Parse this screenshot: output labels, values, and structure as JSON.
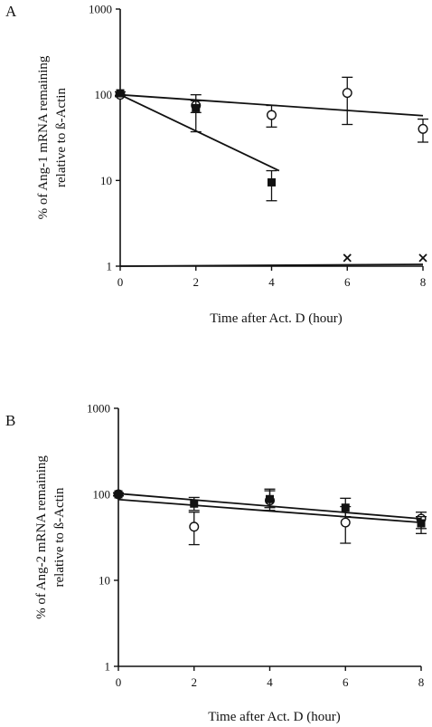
{
  "chart_data": [
    {
      "type": "scatter",
      "panel_label": "A",
      "xlabel": "Time after Act. D (hour)",
      "ylabel": "% of Ang-1 mRNA remaining relative to ß-Actin",
      "y_scale": "log",
      "xlim": [
        0,
        8
      ],
      "ylim": [
        1,
        1000
      ],
      "x_ticks": [
        "0",
        "2",
        "4",
        "6",
        "8"
      ],
      "y_ticks": [
        "1",
        "10",
        "100",
        "1000"
      ],
      "series": [
        {
          "marker": "open-circle",
          "x": [
            0,
            2,
            4,
            6,
            8
          ],
          "y": [
            100,
            75,
            58,
            105,
            40
          ],
          "err_upper": [
            108,
            100,
            75,
            160,
            52
          ],
          "err_lower": [
            95,
            62,
            42,
            45,
            28
          ],
          "fit": {
            "x": [
              0,
              8
            ],
            "y": [
              100,
              57
            ]
          }
        },
        {
          "marker": "filled-square",
          "x": [
            0,
            2,
            4
          ],
          "y": [
            104,
            70,
            9.5
          ],
          "err_upper": [
            108,
            85,
            13
          ],
          "err_lower": [
            98,
            37,
            5.8
          ],
          "fit": {
            "x": [
              0,
              4.2
            ],
            "y": [
              100,
              13
            ]
          }
        },
        {
          "marker": "x",
          "x": [
            6,
            8
          ],
          "y": [
            1.25,
            1.25
          ],
          "fit": {
            "x": [
              0,
              8
            ],
            "y": [
              1,
              1.05
            ]
          }
        }
      ]
    },
    {
      "type": "scatter",
      "panel_label": "B",
      "xlabel": "Time after Act.  D (hour)",
      "ylabel": "% of Ang-2 mRNA remaining relative to ß-Actin",
      "y_scale": "log",
      "xlim": [
        0,
        8
      ],
      "ylim": [
        1,
        1000
      ],
      "x_ticks": [
        "0",
        "2",
        "4",
        "6",
        "8"
      ],
      "y_ticks": [
        "1",
        "10",
        "100",
        "1000"
      ],
      "series": [
        {
          "marker": "open-circle",
          "x": [
            0,
            2,
            4,
            6,
            8
          ],
          "y": [
            100,
            42,
            85,
            47,
            52
          ],
          "err_upper": [
            104,
            62,
            110,
            72,
            62
          ],
          "err_lower": [
            96,
            26,
            65,
            27,
            40
          ],
          "fit": {
            "x": [
              0,
              8
            ],
            "y": [
              87,
              47
            ]
          }
        },
        {
          "marker": "filled-square",
          "x": [
            0,
            2,
            4,
            6,
            8
          ],
          "y": [
            100,
            78,
            88,
            70,
            46
          ],
          "err_upper": [
            104,
            92,
            115,
            90,
            55
          ],
          "err_lower": [
            96,
            65,
            70,
            55,
            35
          ],
          "fit": {
            "x": [
              0,
              8
            ],
            "y": [
              102,
              52
            ]
          }
        }
      ]
    }
  ]
}
